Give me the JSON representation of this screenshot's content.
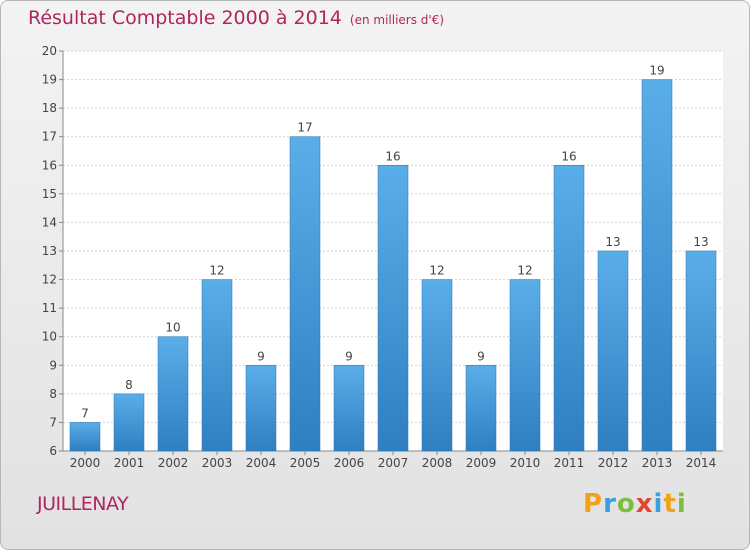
{
  "header": {
    "title": "Résultat Comptable 2000 à 2014",
    "unit": "(en milliers d'€)"
  },
  "footer": {
    "place": "JUILLENAY",
    "logo_letters": [
      {
        "ch": "P",
        "color": "#f0a21a"
      },
      {
        "ch": "r",
        "color": "#3a9fe0"
      },
      {
        "ch": "o",
        "color": "#7bbf3a"
      },
      {
        "ch": "x",
        "color": "#e8452f"
      },
      {
        "ch": "i",
        "color": "#3a9fe0"
      },
      {
        "ch": "t",
        "color": "#f0a21a"
      },
      {
        "ch": "i",
        "color": "#7bbf3a"
      }
    ]
  },
  "colors": {
    "bar_top": "#5aaee8",
    "bar_bottom": "#2f7fc1",
    "title": "#b0255f"
  },
  "chart_data": {
    "type": "bar",
    "title": "Résultat Comptable 2000 à 2014",
    "subtitle": "(en milliers d'€)",
    "categories": [
      "2000",
      "2001",
      "2002",
      "2003",
      "2004",
      "2005",
      "2006",
      "2007",
      "2008",
      "2009",
      "2010",
      "2011",
      "2012",
      "2013",
      "2014"
    ],
    "values": [
      7,
      8,
      10,
      12,
      9,
      17,
      9,
      16,
      12,
      9,
      12,
      16,
      13,
      19,
      13
    ],
    "ylim": [
      6,
      20
    ],
    "yticks": [
      6,
      7,
      8,
      9,
      10,
      11,
      12,
      13,
      14,
      15,
      16,
      17,
      18,
      19,
      20
    ],
    "grid": true,
    "data_labels": true
  }
}
